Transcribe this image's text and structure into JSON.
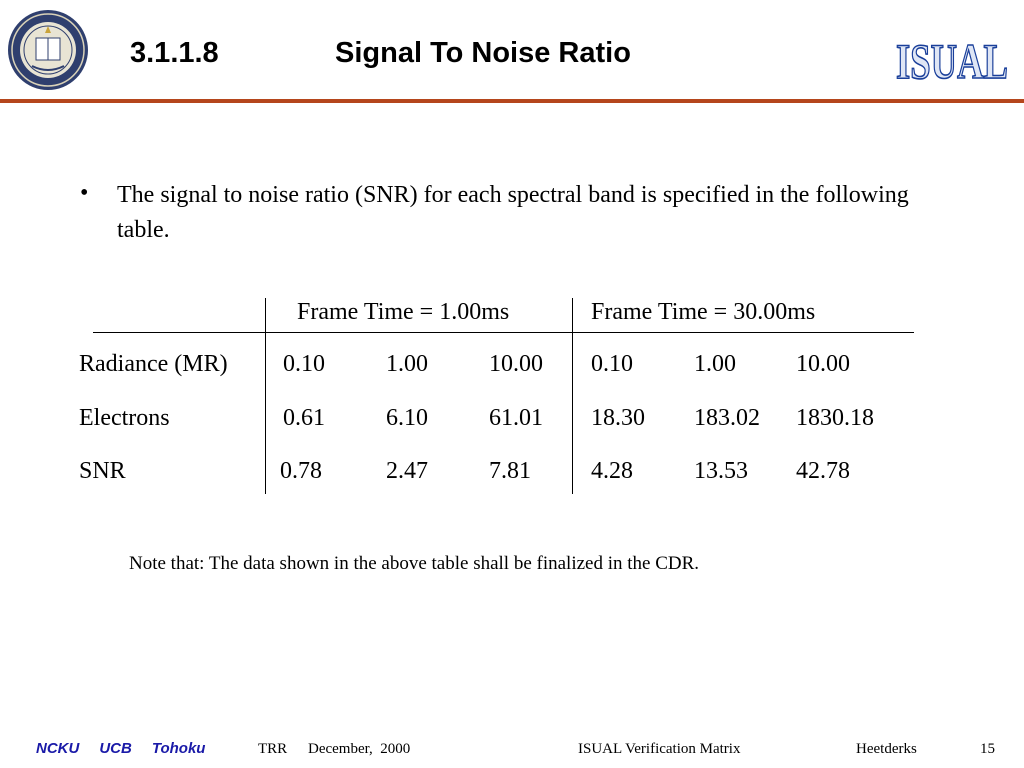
{
  "header": {
    "section_number": "3.1.1.8",
    "title": "Signal To Noise Ratio",
    "left_logo": "university-of-california-seal",
    "right_logo": "ISUAL",
    "rule_color": "#b5461c"
  },
  "body": {
    "bullet": "The signal to noise ratio (SNR) for each spectral band is specified in the following table.",
    "note": "Note that: The data shown in the above table shall be finalized in the CDR."
  },
  "table": {
    "group_headers": [
      "Frame Time = 1.00ms",
      "Frame Time = 30.00ms"
    ],
    "rows": [
      {
        "label": "Radiance (MR)",
        "values": [
          "0.10",
          "1.00",
          "10.00",
          "0.10",
          "1.00",
          "10.00"
        ]
      },
      {
        "label": "Electrons",
        "values": [
          "0.61",
          "6.10",
          "61.01",
          "18.30",
          "183.02",
          "1830.18"
        ]
      },
      {
        "label": "SNR",
        "values": [
          "0.78",
          "2.47",
          "7.81",
          "4.28",
          "13.53",
          "42.78"
        ]
      }
    ]
  },
  "footer": {
    "orgs": [
      "NCKU",
      "UCB",
      "Tohoku"
    ],
    "org_color": "#1a1aa8",
    "trr": "TRR",
    "date": "December,  2000",
    "doc": "ISUAL Verification Matrix",
    "author": "Heetderks",
    "page": "15"
  }
}
